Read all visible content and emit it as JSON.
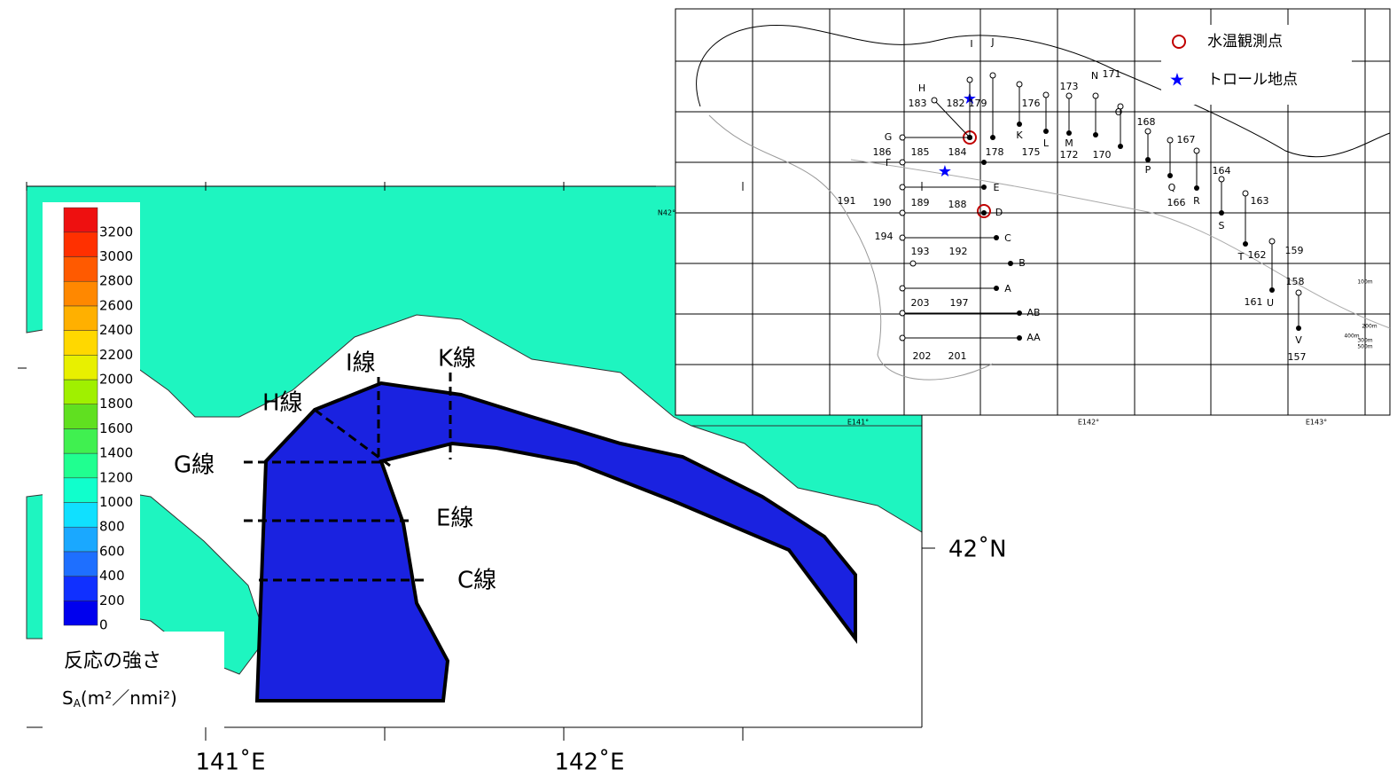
{
  "left_map": {
    "colorbar": {
      "ticks": [
        0,
        200,
        400,
        600,
        800,
        1000,
        1200,
        1400,
        1600,
        1800,
        2000,
        2200,
        2400,
        2600,
        2800,
        3000,
        3200
      ],
      "colors": [
        "#0000ee",
        "#1030ff",
        "#1e6fff",
        "#1aa8ff",
        "#10e0ff",
        "#10ffcc",
        "#20ff90",
        "#40f050",
        "#60e020",
        "#a0f000",
        "#e8f000",
        "#ffd800",
        "#ffb000",
        "#ff8800",
        "#ff5a00",
        "#ff3000",
        "#ee1010"
      ],
      "title": "反応の強さ",
      "unit_s": "S",
      "unit_sub": "A",
      "unit_rest": "(m²／nmi²)"
    },
    "line_labels": [
      "G線",
      "H線",
      "I線",
      "K線",
      "E線",
      "C線"
    ],
    "x_axis_labels": [
      "141˚E",
      "142˚E"
    ],
    "y_axis_labels": [
      "42˚N"
    ]
  },
  "right_map": {
    "legend": [
      {
        "label": "水温観測点",
        "color": "#c00000"
      },
      {
        "label": "トロール地点",
        "color": "#0000ff"
      }
    ],
    "line_letters": [
      "I",
      "J",
      "H",
      "K",
      "L",
      "M",
      "N",
      "O",
      "P",
      "Q",
      "R",
      "S",
      "T",
      "U",
      "V",
      "G",
      "F",
      "E",
      "D",
      "C",
      "B",
      "A",
      "AB",
      "AA"
    ],
    "station_numbers": [
      "183",
      "182",
      "179",
      "176",
      "173",
      "171",
      "168",
      "167",
      "164",
      "163",
      "162",
      "159",
      "158",
      "161",
      "157",
      "166",
      "170",
      "172",
      "175",
      "178",
      "184",
      "185",
      "186",
      "191",
      "190",
      "189",
      "188",
      "194",
      "193",
      "192",
      "203",
      "197",
      "202",
      "201"
    ],
    "axis_labels": [
      "E141°",
      "E142°",
      "E143°",
      "N42°"
    ],
    "depth_labels": [
      "100m",
      "200m",
      "300m",
      "400m",
      "500m"
    ]
  }
}
